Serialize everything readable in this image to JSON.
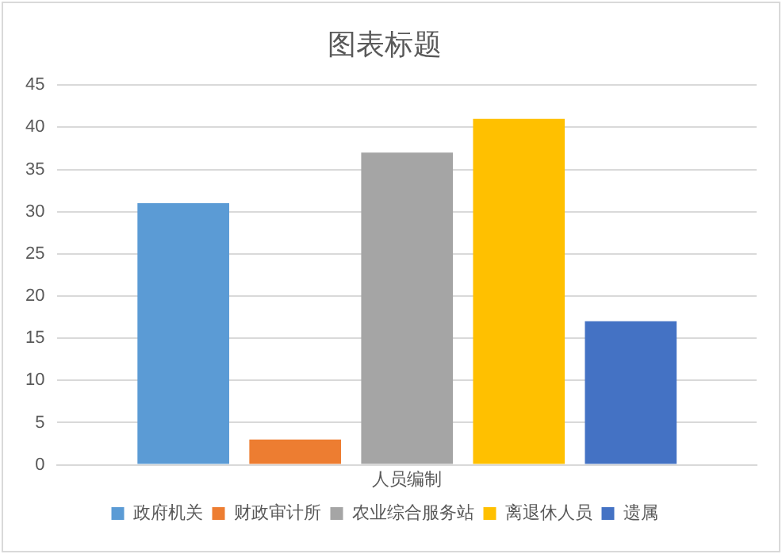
{
  "chart_data": {
    "type": "bar",
    "title": "图表标题",
    "categories": [
      "人员编制"
    ],
    "series": [
      {
        "name": "政府机关",
        "color": "#5b9bd5",
        "values": [
          31
        ]
      },
      {
        "name": "财政审计所",
        "color": "#ed7d31",
        "values": [
          3
        ]
      },
      {
        "name": "农业综合服务站",
        "color": "#a5a5a5",
        "values": [
          37
        ]
      },
      {
        "name": "离退休人员",
        "color": "#ffc000",
        "values": [
          41
        ]
      },
      {
        "name": "遗属",
        "color": "#4472c4",
        "values": [
          17
        ]
      }
    ],
    "ylim": [
      0,
      45
    ],
    "yticks": [
      0,
      5,
      10,
      15,
      20,
      25,
      30,
      35,
      40,
      45
    ],
    "grid": "y",
    "legend": "bottom"
  }
}
